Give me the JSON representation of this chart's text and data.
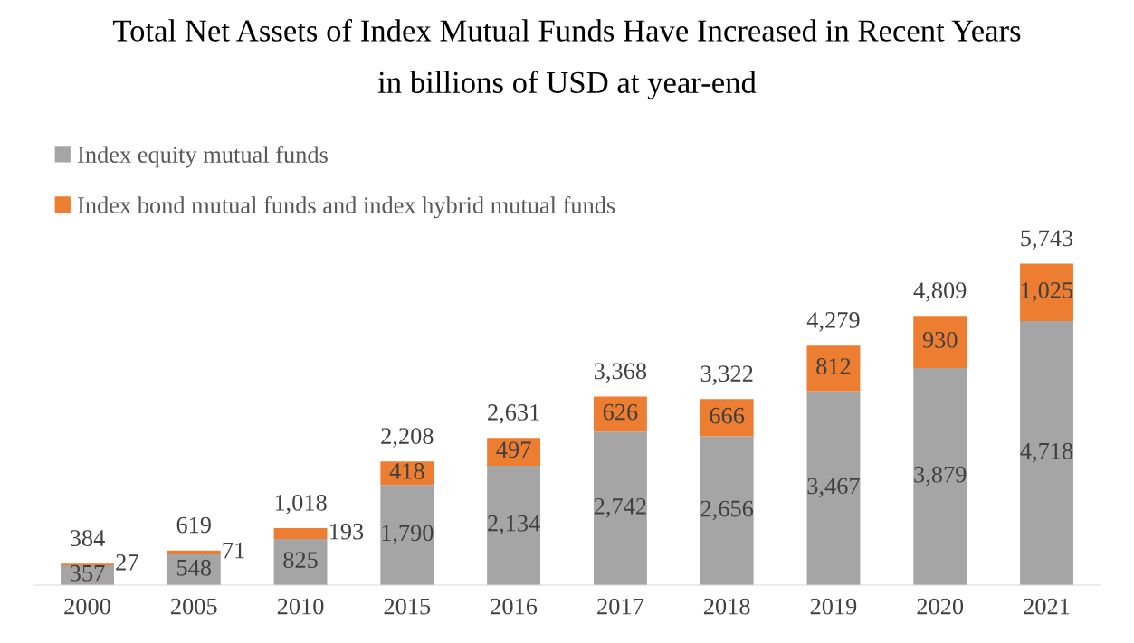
{
  "chart_data": {
    "type": "bar",
    "title": "Total Net Assets of Index Mutual Funds Have Increased in Recent Years",
    "subtitle": "in billions of USD at year-end",
    "categories": [
      "2000",
      "2005",
      "2010",
      "2015",
      "2016",
      "2017",
      "2018",
      "2019",
      "2020",
      "2021"
    ],
    "stacked": true,
    "legend": "top left",
    "tick_labels": "x",
    "series": [
      {
        "name": "Index equity mutual funds",
        "color": "#a5a5a5",
        "values": [
          357,
          548,
          825,
          1790,
          2134,
          2742,
          2656,
          3467,
          3879,
          4718
        ],
        "value_labels": [
          "357",
          "548",
          "825",
          "1,790",
          "2,134",
          "2,742",
          "2,656",
          "3,467",
          "3,879",
          "4,718"
        ]
      },
      {
        "name": "Index bond mutual funds and index hybrid mutual funds",
        "color": "#ed7d31",
        "values": [
          27,
          71,
          193,
          418,
          497,
          626,
          666,
          812,
          930,
          1025
        ],
        "value_labels": [
          "27",
          "71",
          "193",
          "418",
          "497",
          "626",
          "666",
          "812",
          "930",
          "1,025"
        ]
      }
    ],
    "totals": [
      "384",
      "619",
      "1,018",
      "2,208",
      "2,631",
      "3,368",
      "3,322",
      "4,279",
      "4,809",
      "5,743"
    ]
  }
}
